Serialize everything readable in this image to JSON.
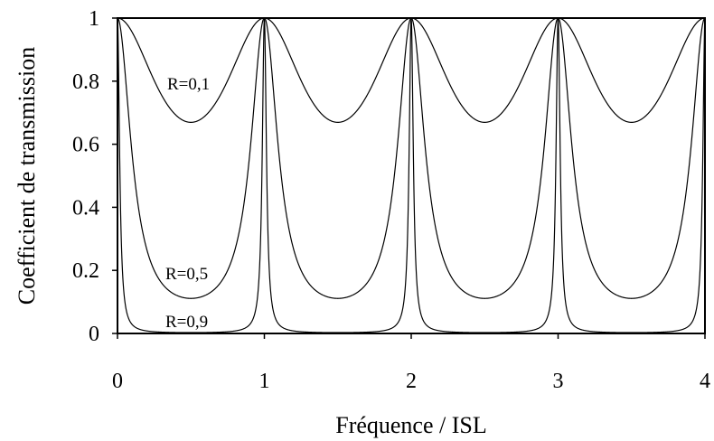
{
  "chart_data": {
    "type": "line",
    "xlabel": "Fréquence / ISL",
    "ylabel": "Coefficient de transmission",
    "xlim": [
      0,
      4
    ],
    "ylim": [
      0,
      1
    ],
    "x_ticks": [
      "0",
      "1",
      "2",
      "3",
      "4"
    ],
    "y_ticks": [
      "0",
      "0.2",
      "0.4",
      "0.6",
      "0.8",
      "1"
    ],
    "grid": false,
    "legend": "none",
    "series": [
      {
        "name": "R=0,1",
        "reflectivity": 0.1,
        "min_transmission": 0.67,
        "max_transmission": 1,
        "period": 1
      },
      {
        "name": "R=0,5",
        "reflectivity": 0.5,
        "min_transmission": 0.11,
        "max_transmission": 1,
        "period": 1
      },
      {
        "name": "R=0,9",
        "reflectivity": 0.9,
        "min_transmission": 0.003,
        "max_transmission": 1,
        "period": 1
      }
    ],
    "line_color": "#000000"
  }
}
